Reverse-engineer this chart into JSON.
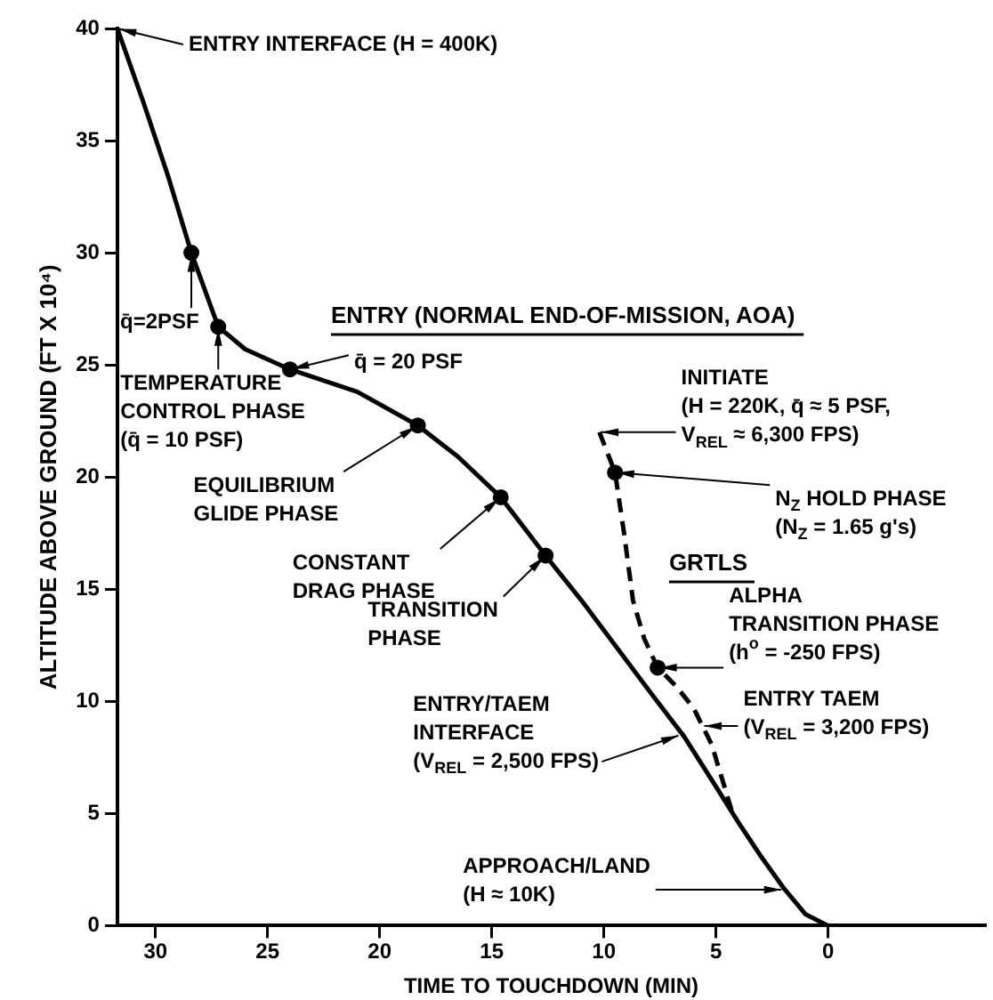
{
  "chart_data": {
    "type": "line",
    "xlabel": "TIME TO TOUCHDOWN (MIN)",
    "ylabel": "ALTITUDE ABOVE GROUND (FT X 10⁴)",
    "xlim": [
      31.7,
      -7
    ],
    "xticks": [
      30,
      25,
      20,
      15,
      10,
      5,
      0
    ],
    "ylim": [
      0,
      40
    ],
    "yticks": [
      0,
      5,
      10,
      15,
      20,
      25,
      30,
      35,
      40
    ],
    "grid": false,
    "legend": false,
    "series": [
      {
        "name": "ENTRY (NORMAL END-OF-MISSION, AOA)",
        "type": "line",
        "color": "#000000",
        "line_style": "solid",
        "marker": "none",
        "x": [
          31.7,
          30.5,
          29.4,
          28.4,
          27.2,
          26.0,
          24.0,
          21.0,
          18.3,
          16.5,
          14.6,
          12.6,
          11.0,
          9.5,
          8.0,
          6.4,
          5.0,
          4.0,
          3.0,
          2.0,
          1.0,
          0
        ],
        "values": [
          40,
          36.6,
          33.3,
          30,
          26.7,
          25.7,
          24.8,
          23.8,
          22.3,
          20.9,
          19.1,
          16.5,
          14.5,
          12.5,
          10.5,
          8.4,
          6.2,
          4.6,
          3.1,
          1.7,
          0.5,
          0
        ]
      },
      {
        "name": "GRTLS",
        "type": "line",
        "color": "#000000",
        "line_style": "dashed",
        "marker": "none",
        "x": [
          10.2,
          9.5,
          9.1,
          8.7,
          8.2,
          7.6,
          6.8,
          6.0,
          5.2,
          4.5,
          4.2
        ],
        "values": [
          22.0,
          20.2,
          17.5,
          14.5,
          12.8,
          11.5,
          10.7,
          9.7,
          8.1,
          5.8,
          4.8
        ]
      },
      {
        "type": "scatter",
        "color": "#000000",
        "marker": "circle",
        "x": [
          28.4,
          27.2,
          24.0,
          18.3,
          14.6,
          12.6,
          9.5,
          7.6
        ],
        "values": [
          30,
          26.7,
          24.8,
          22.3,
          19.1,
          16.5,
          20.2,
          11.5
        ]
      }
    ],
    "annotations": [
      {
        "text": "ENTRY INTERFACE (H = 400K)",
        "x": 31.7,
        "y": 40
      },
      {
        "text": "q̄=2PSF",
        "x": 28.4,
        "y": 30
      },
      {
        "text": "TEMPERATURE\nCONTROL PHASE\n(q̄ = 10 PSF)",
        "x": 27.2,
        "y": 26.7
      },
      {
        "text": "q̄ = 20 PSF",
        "x": 24.0,
        "y": 24.8
      },
      {
        "text": "EQUILIBRIUM\nGLIDE PHASE",
        "x": 18.3,
        "y": 22.3
      },
      {
        "text": "CONSTANT\nDRAG PHASE",
        "x": 14.6,
        "y": 19.1
      },
      {
        "text": "TRANSITION\nPHASE",
        "x": 12.6,
        "y": 16.5
      },
      {
        "text": "ENTRY/TAEM\nINTERFACE\n(V$_{REL}$ = 2,500 FPS)",
        "x": 6.6,
        "y": 8.5
      },
      {
        "text": "APPROACH/LAND\n(H ≈ 10K)",
        "x": 2.0,
        "y": 1.6
      },
      {
        "text": "INITIATE\n(H = 220K, q̄ ≈ 5 PSF,\nV$_{REL}$ ≈ 6,300 FPS)",
        "x": 10.2,
        "y": 22.0
      },
      {
        "text": "N$_{Z}$ HOLD PHASE\n(N$_{Z}$ = 1.65 g's)",
        "x": 9.5,
        "y": 20.2
      },
      {
        "text": "ALPHA\nTRANSITION PHASE\n(h$^{o}$ = -250 FPS)",
        "x": 7.6,
        "y": 11.5
      },
      {
        "text": "ENTRY TAEM\n(V$_{REL}$ = 3,200 FPS)",
        "x": 5.6,
        "y": 8.9
      }
    ]
  }
}
